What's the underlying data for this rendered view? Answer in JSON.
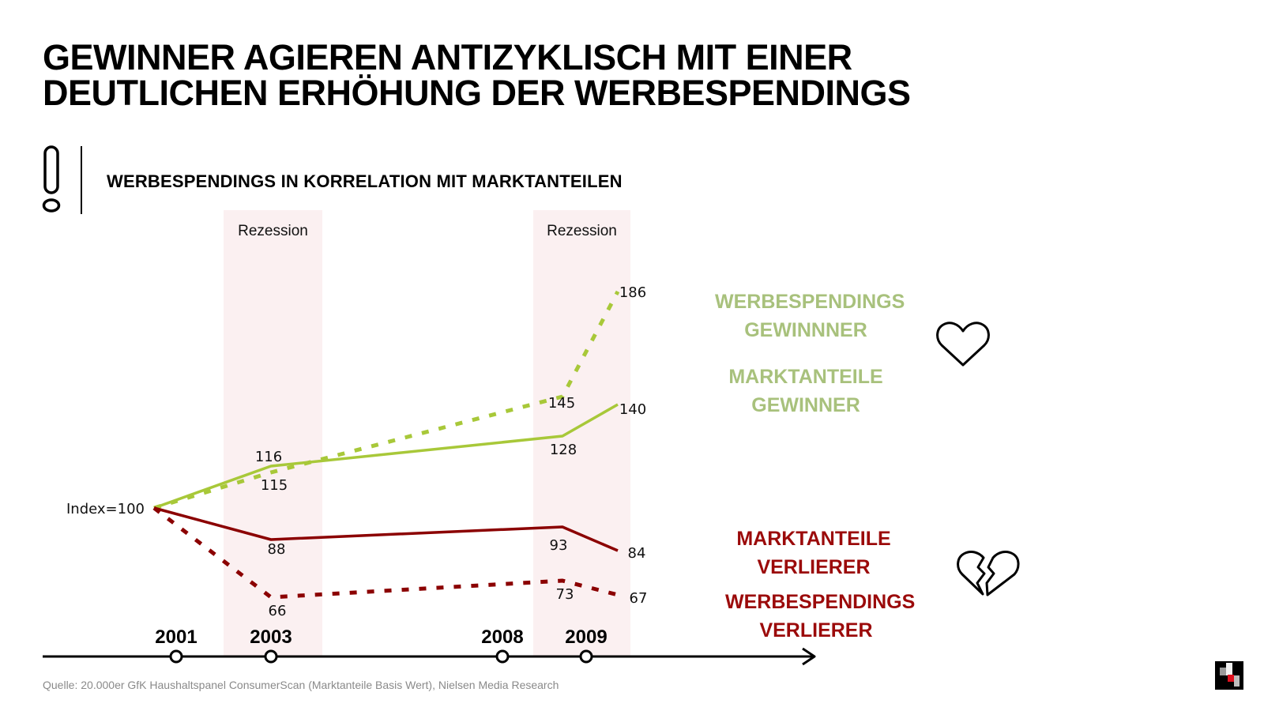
{
  "title": {
    "line1": "GEWINNER AGIEREN ANTIZYKLISCH MIT EINER",
    "line2": "DEUTLICHEN ERHÖHUNG DER WERBESPENDINGS"
  },
  "subtitle": "WERBESPENDINGS IN KORRELATION MIT MARKTANTEILEN",
  "icons": {
    "header": "exclamation-icon",
    "winner": "heart-icon",
    "loser": "broken-heart-icon"
  },
  "colors": {
    "green": "#a8c839",
    "green_text": "#a8c17c",
    "red": "#8b0000",
    "red_text": "#9b0a0a",
    "band": "#fbf0f1"
  },
  "legend": {
    "green_1": [
      "WERBESPENDINGS",
      "GEWINNNER"
    ],
    "green_2": [
      "MARKTANTEILE",
      "GEWINNER"
    ],
    "red_1": [
      "MARKTANTEILE",
      "VERLIERER"
    ],
    "red_2": [
      "WERBESPENDINGS",
      "VERLIERER"
    ]
  },
  "source": "Quelle: 20.000er GfK Haushaltspanel ConsumerScan (Marktanteile Basis Wert), Nielsen Media Research",
  "chart_data": {
    "type": "line",
    "title": "WERBESPENDINGS IN KORRELATION MIT MARKTANTEILEN",
    "x": [
      "2001",
      "2003",
      "2008",
      "2009"
    ],
    "index_label": "Index=100",
    "shaded_regions": [
      {
        "label": "Rezession",
        "from": "2003",
        "to": "2003"
      },
      {
        "label": "Rezession",
        "from": "2009",
        "to": "2009"
      }
    ],
    "series": [
      {
        "name": "Werbespendings Gewinner",
        "style": "dashed",
        "color": "green",
        "values": [
          100,
          115,
          145,
          186
        ]
      },
      {
        "name": "Marktanteile Gewinner",
        "style": "solid",
        "color": "green",
        "values": [
          100,
          116,
          128,
          140
        ]
      },
      {
        "name": "Marktanteile Verlierer",
        "style": "solid",
        "color": "red",
        "values": [
          100,
          88,
          93,
          84
        ]
      },
      {
        "name": "Werbespendings Verlierer",
        "style": "dashed",
        "color": "red",
        "values": [
          100,
          66,
          73,
          67
        ]
      }
    ],
    "xlabel": "",
    "ylabel": "",
    "grid": false,
    "legend": "right"
  }
}
